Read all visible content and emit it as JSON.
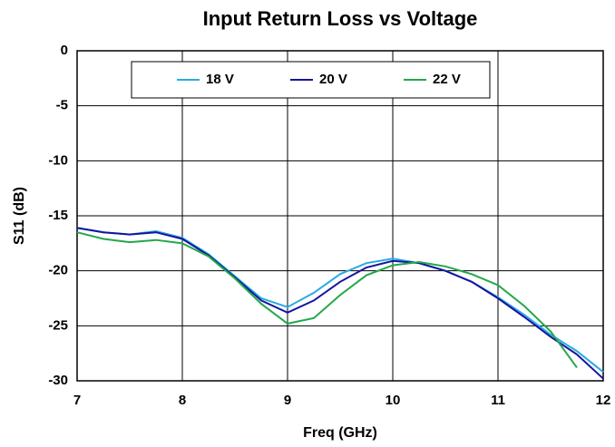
{
  "chart_data": {
    "type": "line",
    "title": "Input Return Loss vs Voltage",
    "x_label": "Freq (GHz)",
    "y_label": "S11 (dB)",
    "x": [
      7,
      7.25,
      7.5,
      7.75,
      8,
      8.25,
      8.5,
      8.75,
      9,
      9.25,
      9.5,
      9.75,
      10,
      10.25,
      10.5,
      10.75,
      11,
      11.25,
      11.5,
      11.75,
      12
    ],
    "series": [
      {
        "name": "18 V",
        "color": "#29abe2",
        "values": [
          -16.1,
          -16.5,
          -16.7,
          -16.4,
          -17.0,
          -18.5,
          -20.5,
          -22.5,
          -23.3,
          -22.0,
          -20.3,
          -19.3,
          -18.9,
          -19.3,
          -20.0,
          -21.0,
          -22.4,
          -24.0,
          -25.8,
          -27.3,
          -29.2
        ]
      },
      {
        "name": "20 V",
        "color": "#1414a0",
        "values": [
          -16.1,
          -16.5,
          -16.7,
          -16.5,
          -17.1,
          -18.6,
          -20.6,
          -22.7,
          -23.8,
          -22.7,
          -21.0,
          -19.7,
          -19.1,
          -19.3,
          -20.0,
          -21.0,
          -22.5,
          -24.2,
          -26.0,
          -27.6,
          -29.8
        ]
      },
      {
        "name": "22 V",
        "color": "#22a84a",
        "values": [
          -16.5,
          -17.1,
          -17.4,
          -17.2,
          -17.5,
          -18.7,
          -20.7,
          -23.0,
          -24.8,
          -24.3,
          -22.2,
          -20.4,
          -19.5,
          -19.2,
          -19.6,
          -20.3,
          -21.3,
          -23.2,
          -25.5,
          -28.8,
          null
        ]
      }
    ],
    "xlim": [
      7,
      12
    ],
    "xticks": [
      7,
      8,
      9,
      10,
      11,
      12
    ],
    "ylim": [
      -30,
      0
    ],
    "yticks": [
      -30,
      -25,
      -20,
      -15,
      -10,
      -5,
      0
    ],
    "grid": true,
    "legend": "top"
  }
}
